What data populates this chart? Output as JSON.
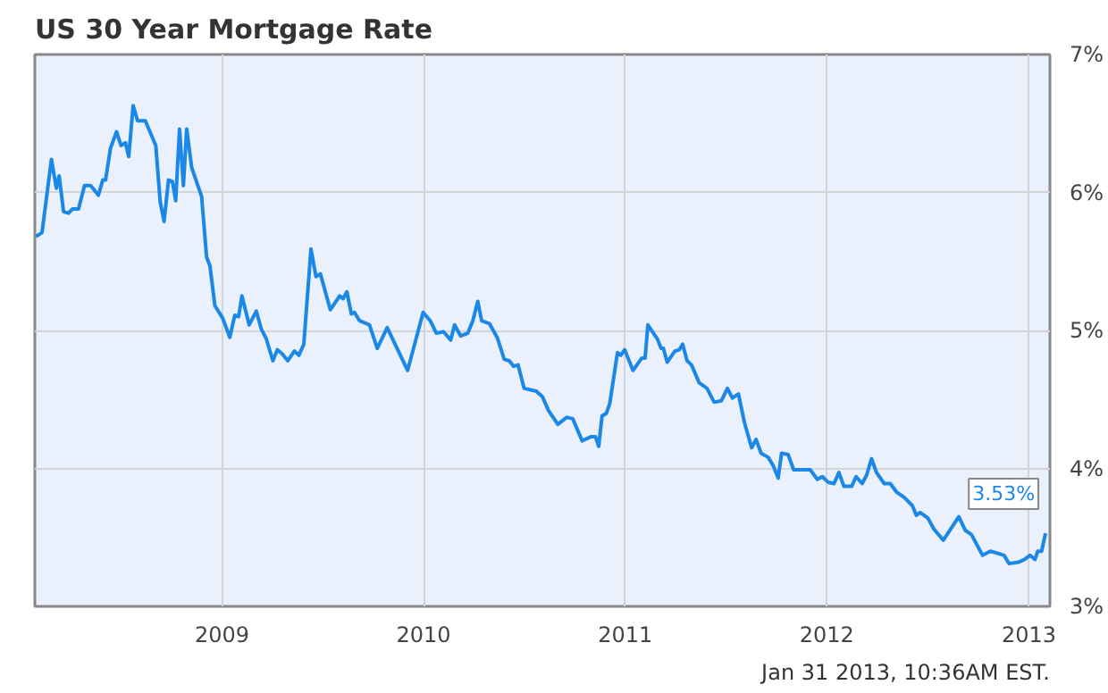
{
  "chart_data": {
    "type": "line",
    "title": "US 30 Year Mortgage Rate",
    "x": [
      "2008-01-30",
      "2008-02-10",
      "2008-02-27",
      "2008-03-07",
      "2008-03-12",
      "2008-03-20",
      "2008-03-29",
      "2008-04-05",
      "2008-04-16",
      "2008-04-27",
      "2008-05-08",
      "2008-05-22",
      "2008-05-30",
      "2008-06-04",
      "2008-06-13",
      "2008-06-24",
      "2008-07-02",
      "2008-07-10",
      "2008-07-16",
      "2008-07-24",
      "2008-08-01",
      "2008-08-15",
      "2008-09-03",
      "2008-09-11",
      "2008-09-18",
      "2008-09-26",
      "2008-10-03",
      "2008-10-09",
      "2008-10-16",
      "2008-10-23",
      "2008-10-29",
      "2008-11-07",
      "2008-11-25",
      "2008-12-04",
      "2008-12-10",
      "2008-12-19",
      "2009-01-02",
      "2009-01-15",
      "2009-01-24",
      "2009-01-31",
      "2009-02-06",
      "2009-02-19",
      "2009-03-04",
      "2009-03-13",
      "2009-03-22",
      "2009-04-03",
      "2009-04-11",
      "2009-04-20",
      "2009-04-30",
      "2009-05-12",
      "2009-05-20",
      "2009-05-29",
      "2009-06-11",
      "2009-06-20",
      "2009-06-28",
      "2009-07-16",
      "2009-08-02",
      "2009-08-08",
      "2009-08-15",
      "2009-08-23",
      "2009-08-29",
      "2009-09-07",
      "2009-09-25",
      "2009-10-09",
      "2009-10-27",
      "2009-12-03",
      "2009-12-31",
      "2010-01-13",
      "2010-01-24",
      "2010-02-06",
      "2010-02-19",
      "2010-02-26",
      "2010-03-09",
      "2010-03-22",
      "2010-03-31",
      "2010-04-09",
      "2010-04-16",
      "2010-04-30",
      "2010-05-14",
      "2010-05-27",
      "2010-06-05",
      "2010-06-13",
      "2010-06-21",
      "2010-07-02",
      "2010-07-24",
      "2010-08-04",
      "2010-08-15",
      "2010-09-01",
      "2010-09-17",
      "2010-09-28",
      "2010-10-15",
      "2010-10-31",
      "2010-11-08",
      "2010-11-14",
      "2010-11-20",
      "2010-11-28",
      "2010-12-04",
      "2010-12-18",
      "2010-12-24",
      "2010-12-31",
      "2011-01-15",
      "2011-01-31",
      "2011-02-06",
      "2011-02-11",
      "2011-02-28",
      "2011-03-07",
      "2011-03-11",
      "2011-03-18",
      "2011-04-01",
      "2011-04-09",
      "2011-04-15",
      "2011-04-23",
      "2011-05-01",
      "2011-05-15",
      "2011-05-29",
      "2011-06-11",
      "2011-06-24",
      "2011-07-05",
      "2011-07-14",
      "2011-07-25",
      "2011-08-05",
      "2011-08-18",
      "2011-08-26",
      "2011-09-04",
      "2011-09-17",
      "2011-09-26",
      "2011-10-05",
      "2011-10-11",
      "2011-10-23",
      "2011-11-02",
      "2011-11-21",
      "2011-12-02",
      "2011-12-15",
      "2011-12-24",
      "2012-01-03",
      "2012-01-14",
      "2012-01-23",
      "2012-02-01",
      "2012-02-15",
      "2012-02-23",
      "2012-03-05",
      "2012-03-13",
      "2012-03-22",
      "2012-03-31",
      "2012-04-14",
      "2012-04-25",
      "2012-05-06",
      "2012-05-20",
      "2012-06-04",
      "2012-06-11",
      "2012-06-18",
      "2012-07-02",
      "2012-07-13",
      "2012-07-30",
      "2012-08-27",
      "2012-09-08",
      "2012-09-19",
      "2012-10-09",
      "2012-10-23",
      "2012-11-09",
      "2012-11-17",
      "2012-11-26",
      "2012-12-13",
      "2012-12-24",
      "2013-01-03",
      "2013-01-12",
      "2013-01-17",
      "2013-01-24",
      "2013-01-31"
    ],
    "series": [
      {
        "color": "#1b87e6",
        "values": [
          5.68,
          5.71,
          6.24,
          6.03,
          6.12,
          5.86,
          5.85,
          5.88,
          5.88,
          6.05,
          6.05,
          5.98,
          6.09,
          6.09,
          6.32,
          6.44,
          6.34,
          6.36,
          6.26,
          6.63,
          6.52,
          6.52,
          6.34,
          5.93,
          5.79,
          6.09,
          6.08,
          5.94,
          6.46,
          6.05,
          6.46,
          6.18,
          5.97,
          5.53,
          5.47,
          5.18,
          5.09,
          4.95,
          5.11,
          5.1,
          5.25,
          5.04,
          5.14,
          5.01,
          4.94,
          4.78,
          4.86,
          4.83,
          4.78,
          4.85,
          4.82,
          4.9,
          5.59,
          5.39,
          5.41,
          5.15,
          5.25,
          5.23,
          5.28,
          5.12,
          5.13,
          5.07,
          5.04,
          4.87,
          5.02,
          4.71,
          5.13,
          5.07,
          4.98,
          4.99,
          4.93,
          5.04,
          4.96,
          4.98,
          5.07,
          5.21,
          5.07,
          5.05,
          4.95,
          4.79,
          4.78,
          4.74,
          4.75,
          4.58,
          4.56,
          4.52,
          4.42,
          4.32,
          4.37,
          4.36,
          4.2,
          4.23,
          4.23,
          4.16,
          4.38,
          4.4,
          4.47,
          4.84,
          4.82,
          4.86,
          4.71,
          4.8,
          4.8,
          5.04,
          4.94,
          4.87,
          4.87,
          4.77,
          4.85,
          4.86,
          4.9,
          4.78,
          4.75,
          4.62,
          4.58,
          4.48,
          4.49,
          4.58,
          4.51,
          4.54,
          4.33,
          4.15,
          4.21,
          4.11,
          4.08,
          4.02,
          3.93,
          4.11,
          4.1,
          3.99,
          3.99,
          3.99,
          3.92,
          3.94,
          3.9,
          3.89,
          3.97,
          3.87,
          3.87,
          3.94,
          3.89,
          3.95,
          4.07,
          3.97,
          3.89,
          3.89,
          3.83,
          3.79,
          3.73,
          3.66,
          3.68,
          3.64,
          3.56,
          3.48,
          3.65,
          3.55,
          3.52,
          3.37,
          3.4,
          3.38,
          3.37,
          3.31,
          3.32,
          3.34,
          3.37,
          3.34,
          3.4,
          3.4,
          3.53
        ]
      }
    ],
    "xlim": [
      "2008-01-28",
      "2013-02-08"
    ],
    "xticks": [
      {
        "value": "2009-01-01",
        "label": "2009"
      },
      {
        "value": "2010-01-01",
        "label": "2010"
      },
      {
        "value": "2011-01-01",
        "label": "2011"
      },
      {
        "value": "2012-01-01",
        "label": "2012"
      },
      {
        "value": "2013-01-01",
        "label": "2013"
      }
    ],
    "ylim": [
      3,
      7
    ],
    "yticks": [
      {
        "value": 3,
        "label": "3%"
      },
      {
        "value": 4,
        "label": "4%"
      },
      {
        "value": 5,
        "label": "5%"
      },
      {
        "value": 6,
        "label": "6%"
      },
      {
        "value": 7,
        "label": "7%"
      }
    ],
    "grid": true,
    "annotations": [
      {
        "text": "3.53%",
        "x": "2013-01-31",
        "y": 3.53
      },
      "Jan 31 2013, 10:36AM EST."
    ]
  }
}
